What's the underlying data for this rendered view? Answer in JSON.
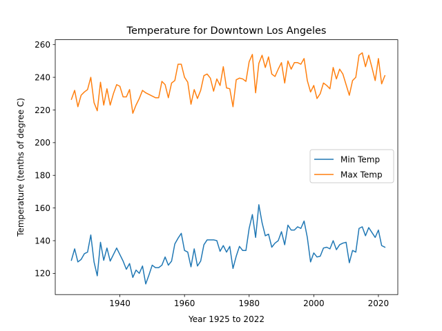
{
  "chart_data": {
    "type": "line",
    "title": "Temperature for Downtown Los Angeles",
    "xlabel": "Year 1925 to 2022",
    "ylabel": "Temperature (tenths of degree C)",
    "xlim": [
      1920,
      2026
    ],
    "ylim": [
      107,
      263
    ],
    "xticks": [
      1940,
      1960,
      1980,
      2000,
      2020
    ],
    "yticks": [
      120,
      140,
      160,
      180,
      200,
      220,
      240,
      260
    ],
    "grid": false,
    "legend_position": "center-right",
    "x": [
      1925,
      1926,
      1927,
      1928,
      1929,
      1930,
      1931,
      1932,
      1933,
      1934,
      1935,
      1936,
      1937,
      1938,
      1939,
      1940,
      1941,
      1942,
      1943,
      1944,
      1945,
      1946,
      1947,
      1948,
      1949,
      1950,
      1951,
      1952,
      1953,
      1954,
      1955,
      1956,
      1957,
      1958,
      1959,
      1960,
      1961,
      1962,
      1963,
      1964,
      1965,
      1966,
      1967,
      1968,
      1969,
      1970,
      1971,
      1972,
      1973,
      1974,
      1975,
      1976,
      1977,
      1978,
      1979,
      1980,
      1981,
      1982,
      1983,
      1984,
      1985,
      1986,
      1987,
      1988,
      1989,
      1990,
      1991,
      1992,
      1993,
      1994,
      1995,
      1996,
      1997,
      1998,
      1999,
      2000,
      2001,
      2002,
      2003,
      2004,
      2005,
      2006,
      2007,
      2008,
      2009,
      2010,
      2011,
      2012,
      2013,
      2014,
      2015,
      2016,
      2017,
      2018,
      2019,
      2020,
      2021,
      2022
    ],
    "series": [
      {
        "name": "Min Temp",
        "color": "#1f77b4",
        "values": [
          128,
          135,
          127,
          128.5,
          132,
          133,
          143.5,
          127,
          118.5,
          139,
          128,
          135.5,
          127.5,
          131.5,
          135.5,
          131.5,
          127.5,
          122.5,
          126,
          117.5,
          122,
          120,
          124.5,
          113.5,
          119,
          125,
          123.5,
          123.5,
          125,
          130,
          125,
          127.5,
          138,
          141.5,
          144.5,
          134,
          133,
          124,
          135,
          124.5,
          127.5,
          137.5,
          140.5,
          140.5,
          140.5,
          140,
          133.5,
          137,
          133,
          136.5,
          123,
          130.5,
          136.5,
          134,
          134,
          147.5,
          156,
          142,
          162,
          151,
          143,
          144,
          136,
          138.5,
          140,
          145.5,
          137.5,
          149.5,
          146.5,
          146.5,
          148.5,
          147.5,
          152,
          142,
          127,
          132.5,
          130,
          130.5,
          135.5,
          136,
          135,
          140,
          134.5,
          137.5,
          138.5,
          139,
          126.5,
          134,
          133,
          147.5,
          148.5,
          143,
          148,
          145,
          142,
          146.5,
          137,
          136
        ]
      },
      {
        "name": "Max Temp",
        "color": "#ff7f0e",
        "values": [
          226.5,
          232,
          222,
          229,
          231,
          232.5,
          240,
          224.5,
          219.5,
          237,
          223,
          233,
          223,
          230,
          235.5,
          234.5,
          228,
          228,
          232.5,
          218,
          223,
          227,
          232,
          230.5,
          229.5,
          228.5,
          227.5,
          227.5,
          237.5,
          235.5,
          227.5,
          236.5,
          238,
          248,
          248,
          240,
          237,
          223.5,
          232.5,
          227,
          232,
          241,
          242,
          239.5,
          231.5,
          239,
          235,
          246.5,
          233.5,
          233,
          222,
          238.5,
          239.5,
          239,
          237.5,
          249.5,
          254,
          230.5,
          248.5,
          253.5,
          246,
          252.5,
          242,
          240.5,
          245,
          249,
          236.5,
          250,
          245,
          249,
          249,
          248,
          251.5,
          238,
          231,
          235,
          227,
          230,
          236.5,
          235,
          233,
          246,
          239,
          245,
          242,
          235.5,
          229,
          238,
          240,
          253.5,
          255,
          246.5,
          253.5,
          246,
          238,
          251.5,
          236,
          241
        ]
      }
    ]
  }
}
